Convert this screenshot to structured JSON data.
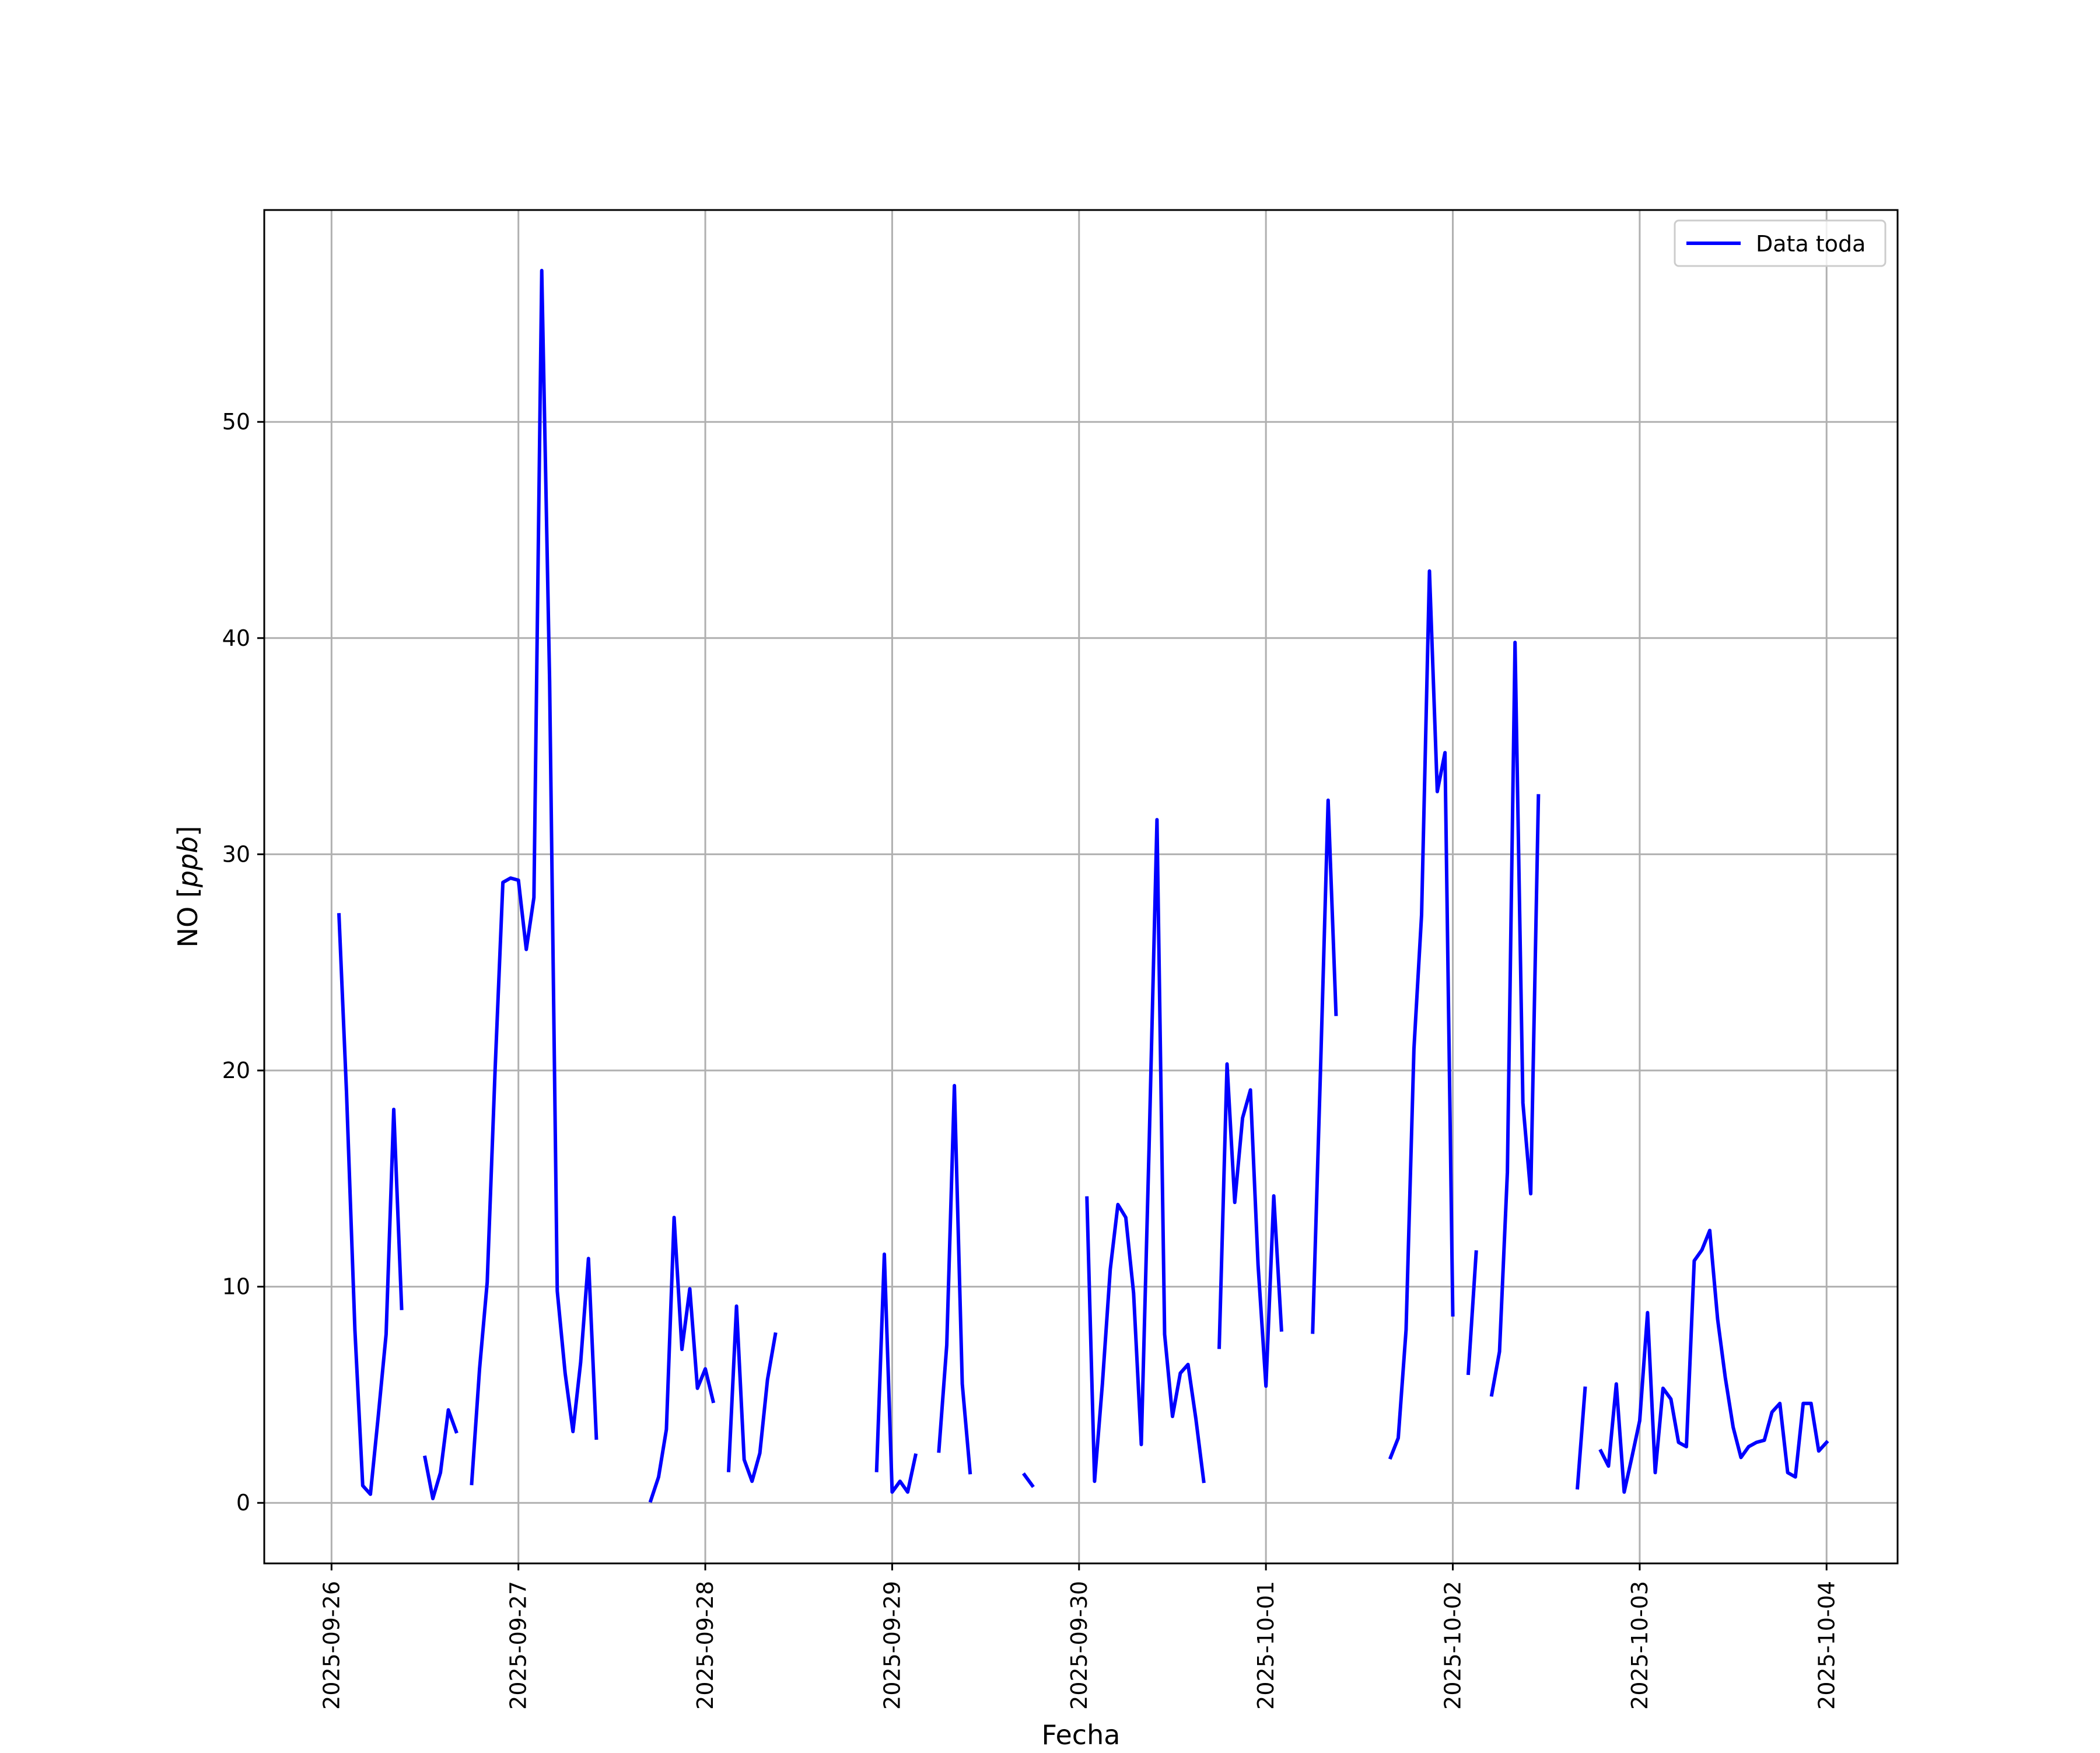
{
  "chart_data": {
    "type": "line",
    "title": "",
    "xlabel": "Fecha",
    "ylabel_main": "NO [",
    "ylabel_italic": "ppb",
    "ylabel_end": "]",
    "xlim": [
      -0.36,
      8.38
    ],
    "ylim": [
      -2.8,
      59.8
    ],
    "x_ticks": [
      {
        "value": 0,
        "label": "2025-09-26"
      },
      {
        "value": 1,
        "label": "2025-09-27"
      },
      {
        "value": 2,
        "label": "2025-09-28"
      },
      {
        "value": 3,
        "label": "2025-09-29"
      },
      {
        "value": 4,
        "label": "2025-09-30"
      },
      {
        "value": 5,
        "label": "2025-10-01"
      },
      {
        "value": 6,
        "label": "2025-10-02"
      },
      {
        "value": 7,
        "label": "2025-10-03"
      },
      {
        "value": 8,
        "label": "2025-10-04"
      }
    ],
    "y_ticks": [
      {
        "value": 0,
        "label": "0"
      },
      {
        "value": 10,
        "label": "10"
      },
      {
        "value": 20,
        "label": "20"
      },
      {
        "value": 30,
        "label": "30"
      },
      {
        "value": 40,
        "label": "40"
      },
      {
        "value": 50,
        "label": "50"
      }
    ],
    "grid": true,
    "legend_position": "top-right",
    "series": [
      {
        "name": "Data toda",
        "color": "#0000ff",
        "segments": [
          [
            [
              0.04,
              27.2
            ],
            [
              0.08,
              19.0
            ],
            [
              0.125,
              8.0
            ],
            [
              0.167,
              0.8
            ],
            [
              0.208,
              0.4
            ],
            [
              0.25,
              4.0
            ],
            [
              0.292,
              7.8
            ],
            [
              0.333,
              18.2
            ],
            [
              0.375,
              9.0
            ]
          ],
          [
            [
              0.5,
              2.1
            ],
            [
              0.542,
              0.2
            ],
            [
              0.583,
              1.4
            ],
            [
              0.625,
              4.3
            ],
            [
              0.667,
              3.3
            ]
          ],
          [
            [
              0.75,
              0.9
            ],
            [
              0.792,
              6.2
            ],
            [
              0.833,
              10.2
            ],
            [
              0.875,
              20.0
            ],
            [
              0.917,
              28.7
            ],
            [
              0.958,
              28.9
            ],
            [
              1.0,
              28.8
            ],
            [
              1.042,
              25.6
            ],
            [
              1.083,
              28.0
            ],
            [
              1.125,
              57.0
            ],
            [
              1.167,
              38.0
            ],
            [
              1.208,
              9.8
            ],
            [
              1.25,
              6.0
            ],
            [
              1.292,
              3.3
            ],
            [
              1.333,
              6.5
            ],
            [
              1.375,
              11.3
            ],
            [
              1.417,
              3.0
            ]
          ],
          [
            [
              1.708,
              0.1
            ],
            [
              1.75,
              1.2
            ],
            [
              1.792,
              3.4
            ],
            [
              1.833,
              13.2
            ],
            [
              1.875,
              7.1
            ],
            [
              1.917,
              9.9
            ],
            [
              1.958,
              5.3
            ],
            [
              2.0,
              6.2
            ],
            [
              2.042,
              4.7
            ]
          ],
          [
            [
              2.125,
              1.5
            ],
            [
              2.167,
              9.1
            ],
            [
              2.208,
              2.0
            ],
            [
              2.25,
              1.0
            ],
            [
              2.292,
              2.3
            ],
            [
              2.333,
              5.7
            ],
            [
              2.375,
              7.8
            ]
          ],
          [
            [
              2.917,
              1.5
            ],
            [
              2.958,
              11.5
            ],
            [
              3.0,
              0.5
            ],
            [
              3.042,
              1.0
            ],
            [
              3.083,
              0.5
            ],
            [
              3.125,
              2.2
            ]
          ],
          [
            [
              3.25,
              2.4
            ],
            [
              3.292,
              7.3
            ],
            [
              3.333,
              19.3
            ],
            [
              3.375,
              5.5
            ],
            [
              3.417,
              1.4
            ]
          ],
          [
            [
              3.708,
              1.3
            ],
            [
              3.75,
              0.8
            ]
          ],
          [
            [
              4.042,
              14.1
            ],
            [
              4.083,
              1.0
            ],
            [
              4.125,
              5.5
            ],
            [
              4.167,
              10.8
            ],
            [
              4.208,
              13.8
            ],
            [
              4.25,
              13.2
            ],
            [
              4.292,
              9.7
            ],
            [
              4.333,
              2.7
            ],
            [
              4.375,
              16.5
            ],
            [
              4.417,
              31.6
            ],
            [
              4.458,
              7.8
            ],
            [
              4.5,
              4.0
            ],
            [
              4.542,
              6.0
            ],
            [
              4.583,
              6.4
            ],
            [
              4.625,
              3.9
            ],
            [
              4.667,
              1.0
            ]
          ],
          [
            [
              4.75,
              7.2
            ],
            [
              4.792,
              20.3
            ],
            [
              4.833,
              13.9
            ],
            [
              4.875,
              17.8
            ],
            [
              4.917,
              19.1
            ],
            [
              4.958,
              11.0
            ],
            [
              5.0,
              5.4
            ],
            [
              5.042,
              14.2
            ],
            [
              5.083,
              8.0
            ]
          ],
          [
            [
              5.25,
              7.9
            ],
            [
              5.292,
              20.0
            ],
            [
              5.333,
              32.5
            ],
            [
              5.375,
              22.6
            ]
          ],
          [
            [
              5.667,
              2.1
            ],
            [
              5.708,
              3.0
            ],
            [
              5.75,
              8.0
            ],
            [
              5.792,
              21.0
            ],
            [
              5.833,
              27.2
            ],
            [
              5.875,
              43.1
            ],
            [
              5.917,
              32.9
            ],
            [
              5.958,
              34.7
            ],
            [
              6.0,
              8.7
            ]
          ],
          [
            [
              6.083,
              6.0
            ],
            [
              6.125,
              11.6
            ]
          ],
          [
            [
              6.208,
              5.0
            ],
            [
              6.25,
              7.0
            ],
            [
              6.292,
              15.3
            ],
            [
              6.333,
              39.8
            ],
            [
              6.375,
              18.5
            ],
            [
              6.417,
              14.3
            ],
            [
              6.458,
              32.7
            ]
          ],
          [
            [
              6.667,
              0.7
            ],
            [
              6.708,
              5.3
            ]
          ],
          [
            [
              6.792,
              2.4
            ],
            [
              6.833,
              1.7
            ],
            [
              6.875,
              5.5
            ],
            [
              6.917,
              0.5
            ],
            [
              6.958,
              2.1
            ],
            [
              7.0,
              3.8
            ],
            [
              7.042,
              8.8
            ],
            [
              7.083,
              1.4
            ],
            [
              7.125,
              5.3
            ],
            [
              7.167,
              4.8
            ],
            [
              7.208,
              2.8
            ],
            [
              7.25,
              2.6
            ],
            [
              7.292,
              11.2
            ],
            [
              7.333,
              11.7
            ],
            [
              7.375,
              12.6
            ],
            [
              7.417,
              8.5
            ],
            [
              7.458,
              5.8
            ],
            [
              7.5,
              3.5
            ],
            [
              7.542,
              2.1
            ],
            [
              7.583,
              2.6
            ],
            [
              7.625,
              2.8
            ],
            [
              7.667,
              2.9
            ],
            [
              7.708,
              4.2
            ],
            [
              7.75,
              4.6
            ],
            [
              7.792,
              1.4
            ],
            [
              7.833,
              1.2
            ],
            [
              7.875,
              4.6
            ],
            [
              7.917,
              4.6
            ],
            [
              7.958,
              2.4
            ],
            [
              8.0,
              2.8
            ]
          ]
        ]
      }
    ]
  }
}
